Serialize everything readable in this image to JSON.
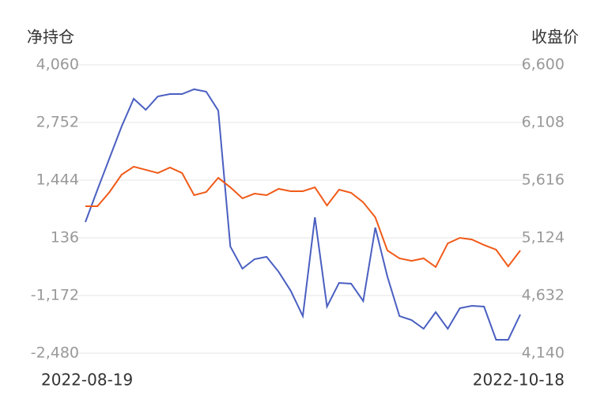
{
  "chart_data": {
    "type": "line",
    "y_label": "净持仓",
    "y2_label": "收盘价",
    "categories": [
      "2022-08-19",
      null,
      null,
      null,
      null,
      null,
      null,
      null,
      null,
      null,
      null,
      null,
      null,
      null,
      null,
      null,
      null,
      null,
      null,
      null,
      null,
      null,
      null,
      null,
      null,
      null,
      null,
      null,
      null,
      null,
      null,
      null,
      null,
      null,
      null,
      null,
      "2022-10-18"
    ],
    "ylim": [
      -2480,
      4060
    ],
    "yticks": [
      {
        "value": 4060,
        "label": "4,060"
      },
      {
        "value": 2752,
        "label": "2,752"
      },
      {
        "value": 1444,
        "label": "1,444"
      },
      136,
      {
        "value": -1172,
        "label": "-1,172"
      },
      {
        "value": -2480,
        "label": "-2,480"
      }
    ],
    "y2lim": [
      4140,
      6600
    ],
    "y2ticks": [
      {
        "value": 6600,
        "label": "6,600"
      },
      {
        "value": 6108,
        "label": "6,108"
      },
      {
        "value": 5616,
        "label": "5,616"
      },
      {
        "value": 5124,
        "label": "5,124"
      },
      {
        "value": 4632,
        "label": "4,632"
      },
      {
        "value": 4140,
        "label": "4,140"
      }
    ],
    "grid": true,
    "series": [
      {
        "color": "#4a5fc1",
        "values": [
          494,
          1229,
          1946,
          2662,
          3290,
          3039,
          3343,
          3397,
          3397,
          3505,
          3451,
          3021,
          -61,
          -563,
          -348,
          -294,
          -635,
          -1065,
          -1638,
          602,
          -1423,
          -885,
          -903,
          -1297,
          369,
          -742,
          -1638,
          -1728,
          -1925,
          -1548,
          -1925,
          -1459,
          -1405,
          -1423,
          -2175,
          -2175,
          -1602
        ]
      },
      {
        "color": "#f05a18",
        "axis": "y2",
        "values": [
          5394,
          5394,
          5515,
          5663,
          5731,
          5704,
          5677,
          5724,
          5677,
          5488,
          5515,
          5636,
          5555,
          5461,
          5501,
          5488,
          5542,
          5522,
          5522,
          5555,
          5400,
          5535,
          5508,
          5427,
          5299,
          5016,
          4949,
          4928,
          4949,
          4875,
          5077,
          5124,
          5110,
          5063,
          5023,
          4881,
          5016
        ]
      }
    ]
  }
}
